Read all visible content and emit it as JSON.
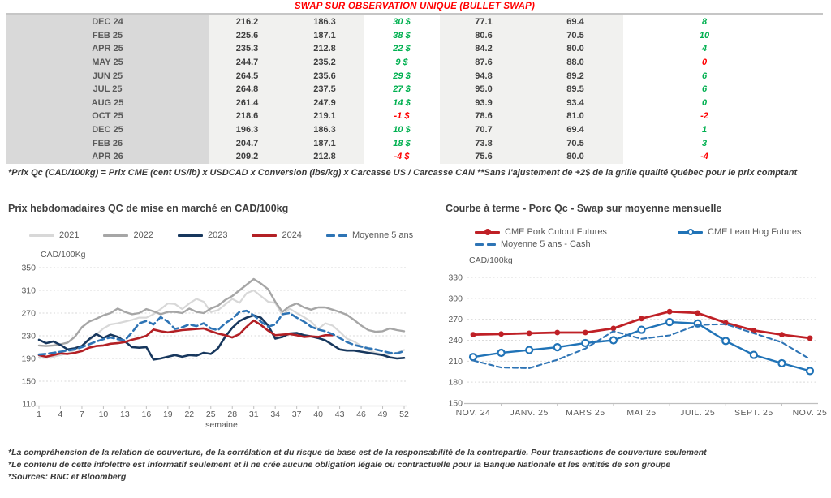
{
  "header": {
    "title": "SWAP SUR OBSERVATION UNIQUE (BULLET SWAP)"
  },
  "colors": {
    "positive": "#00b050",
    "negative": "#ff0000",
    "title_red": "#ff0000",
    "grid": "#d9d9d9",
    "axis": "#bfbfbf"
  },
  "table": {
    "rows": [
      {
        "month": "DEC 24",
        "v1": "216.2",
        "v2": "186.3",
        "swap": "30 $",
        "swap_sign": "pos",
        "v3": "77.1",
        "v4": "69.4",
        "delta": "8",
        "delta_sign": "pos"
      },
      {
        "month": "FEB 25",
        "v1": "225.6",
        "v2": "187.1",
        "swap": "38 $",
        "swap_sign": "pos",
        "v3": "80.6",
        "v4": "70.5",
        "delta": "10",
        "delta_sign": "pos"
      },
      {
        "month": "APR 25",
        "v1": "235.3",
        "v2": "212.8",
        "swap": "22 $",
        "swap_sign": "pos",
        "v3": "84.2",
        "v4": "80.0",
        "delta": "4",
        "delta_sign": "pos"
      },
      {
        "month": "MAY 25",
        "v1": "244.7",
        "v2": "235.2",
        "swap": "9 $",
        "swap_sign": "pos",
        "v3": "87.6",
        "v4": "88.0",
        "delta": "0",
        "delta_sign": "neg"
      },
      {
        "month": "JUN 25",
        "v1": "264.5",
        "v2": "235.6",
        "swap": "29 $",
        "swap_sign": "pos",
        "v3": "94.8",
        "v4": "89.2",
        "delta": "6",
        "delta_sign": "pos"
      },
      {
        "month": "JUL 25",
        "v1": "264.8",
        "v2": "237.5",
        "swap": "27 $",
        "swap_sign": "pos",
        "v3": "95.0",
        "v4": "89.5",
        "delta": "6",
        "delta_sign": "pos"
      },
      {
        "month": "AUG 25",
        "v1": "261.4",
        "v2": "247.9",
        "swap": "14 $",
        "swap_sign": "pos",
        "v3": "93.9",
        "v4": "93.4",
        "delta": "0",
        "delta_sign": "pos"
      },
      {
        "month": "OCT 25",
        "v1": "218.6",
        "v2": "219.1",
        "swap": "-1 $",
        "swap_sign": "neg",
        "v3": "78.6",
        "v4": "81.0",
        "delta": "-2",
        "delta_sign": "neg"
      },
      {
        "month": "DEC 25",
        "v1": "196.3",
        "v2": "186.3",
        "swap": "10 $",
        "swap_sign": "pos",
        "v3": "70.7",
        "v4": "69.4",
        "delta": "1",
        "delta_sign": "pos"
      },
      {
        "month": "FEB 26",
        "v1": "204.7",
        "v2": "187.1",
        "swap": "18 $",
        "swap_sign": "pos",
        "v3": "73.8",
        "v4": "70.5",
        "delta": "3",
        "delta_sign": "pos"
      },
      {
        "month": "APR 26",
        "v1": "209.2",
        "v2": "212.8",
        "swap": "-4 $",
        "swap_sign": "neg",
        "v3": "75.6",
        "v4": "80.0",
        "delta": "-4",
        "delta_sign": "neg"
      }
    ],
    "footnote": "*Prix Qc (CAD/100kg) = Prix CME (cent US/lb) x USDCAD x Conversion (lbs/kg) x Carcasse US / Carcasse CAN **Sans l'ajustement de +2$ de la grille qualité Québec pour le prix comptant"
  },
  "chart_data": [
    {
      "type": "line",
      "title": "Prix hebdomadaires QC de mise en marché en CAD/100kg",
      "ylabel": "CAD/100Kg",
      "xlabel": "semaine",
      "ylim": [
        110,
        350
      ],
      "yticks": [
        350,
        310,
        270,
        230,
        190,
        150,
        110
      ],
      "xticks": [
        1,
        4,
        7,
        10,
        13,
        16,
        19,
        22,
        25,
        28,
        31,
        34,
        37,
        40,
        43,
        46,
        49,
        52
      ],
      "grid": "dashed",
      "legend_position": "top",
      "series": [
        {
          "name": "2021",
          "color": "#d8d8d8",
          "width": 2.2,
          "dash": null,
          "values": [
            192,
            191,
            193,
            196,
            199,
            205,
            212,
            222,
            232,
            243,
            250,
            252,
            255,
            258,
            262,
            262,
            268,
            277,
            287,
            286,
            277,
            287,
            295,
            290,
            272,
            275,
            285,
            295,
            288,
            305,
            310,
            300,
            290,
            288,
            266,
            278,
            270,
            263,
            255,
            242,
            252,
            248,
            237,
            225,
            220,
            212,
            205,
            200,
            197,
            198,
            200,
            205
          ]
        },
        {
          "name": "2022",
          "color": "#a6a6a6",
          "width": 2.4,
          "dash": null,
          "values": [
            213,
            212,
            213,
            215,
            218,
            228,
            245,
            255,
            260,
            266,
            270,
            278,
            272,
            268,
            270,
            277,
            273,
            268,
            272,
            272,
            270,
            278,
            272,
            270,
            278,
            283,
            293,
            300,
            310,
            320,
            330,
            322,
            312,
            290,
            272,
            282,
            287,
            280,
            276,
            280,
            280,
            276,
            272,
            267,
            258,
            248,
            240,
            237,
            238,
            243,
            240,
            238
          ]
        },
        {
          "name": "2023",
          "color": "#17375d",
          "width": 2.6,
          "dash": null,
          "values": [
            223,
            217,
            220,
            214,
            206,
            208,
            212,
            224,
            233,
            226,
            232,
            228,
            220,
            210,
            209,
            210,
            188,
            190,
            193,
            196,
            193,
            196,
            195,
            200,
            198,
            208,
            228,
            244,
            256,
            262,
            266,
            262,
            248,
            225,
            228,
            234,
            235,
            231,
            229,
            226,
            222,
            214,
            206,
            204,
            204,
            202,
            200,
            198,
            196,
            192,
            190,
            191
          ]
        },
        {
          "name": "2024",
          "color": "#b32025",
          "width": 2.6,
          "dash": null,
          "values": [
            196,
            193,
            196,
            199,
            198,
            200,
            203,
            209,
            212,
            213,
            216,
            217,
            219,
            223,
            226,
            230,
            241,
            238,
            236,
            238,
            240,
            241,
            242,
            243,
            238,
            234,
            231,
            227,
            233,
            246,
            257,
            249,
            239,
            231,
            232,
            233,
            231,
            228,
            229,
            228,
            231,
            231
          ]
        },
        {
          "name": "Moyenne 5 ans",
          "color": "#2e74b5",
          "width": 2.6,
          "dash": "8 4.5",
          "values": [
            197,
            198,
            200,
            202,
            204,
            206,
            210,
            215,
            220,
            224,
            227,
            224,
            222,
            236,
            252,
            256,
            250,
            263,
            255,
            242,
            245,
            250,
            247,
            252,
            243,
            240,
            252,
            260,
            272,
            274,
            266,
            255,
            246,
            250,
            268,
            270,
            262,
            255,
            246,
            241,
            238,
            233,
            226,
            219,
            214,
            211,
            208,
            206,
            203,
            200,
            199,
            203
          ]
        }
      ]
    },
    {
      "type": "line",
      "title": "Courbe à terme - Porc Qc - Swap sur moyenne mensuelle",
      "ylabel": "CAD/100kg",
      "xlabel": "",
      "ylim": [
        150,
        330
      ],
      "yticks": [
        330,
        300,
        270,
        240,
        210,
        180,
        150
      ],
      "x_count": 13,
      "tick_labels": [
        "NOV. 24",
        "JANV. 25",
        "MARS 25",
        "MAI 25",
        "JUIL. 25",
        "SEPT. 25",
        "NOV. 25"
      ],
      "tick_positions": [
        0,
        2,
        4,
        6,
        8,
        10,
        12
      ],
      "grid": "dashed",
      "legend_position": "top",
      "series": [
        {
          "name": "CME Pork Cutout Futures",
          "color": "#bf2026",
          "width": 2.8,
          "dash": null,
          "marker": "filled",
          "values": [
            248,
            249,
            250,
            251,
            251,
            257,
            271,
            281,
            279,
            265,
            254,
            248,
            243
          ]
        },
        {
          "name": "CME Lean Hog Futures",
          "color": "#2073b7",
          "width": 2.4,
          "dash": null,
          "marker": "open",
          "values": [
            216,
            222,
            226,
            230,
            236,
            240,
            255,
            266,
            264,
            239,
            219,
            207,
            196
          ]
        },
        {
          "name": "Moyenne 5 ans - Cash",
          "color": "#2e74b5",
          "width": 2.1,
          "dash": "6 4",
          "marker": null,
          "values": [
            211,
            201,
            200,
            212,
            228,
            253,
            242,
            247,
            262,
            263,
            250,
            237,
            213
          ]
        }
      ]
    }
  ],
  "footer": {
    "lines": [
      "*La compréhension de la relation de couverture, de la corrélation et du risque de base est de la responsabilité de la contrepartie. Pour transactions de couverture seulement",
      "*Le contenu de cette infolettre est informatif seulement et il ne crée aucune obligation légale ou contractuelle pour la Banque Nationale et les entités de son groupe",
      "*Sources: BNC et Bloomberg"
    ]
  }
}
